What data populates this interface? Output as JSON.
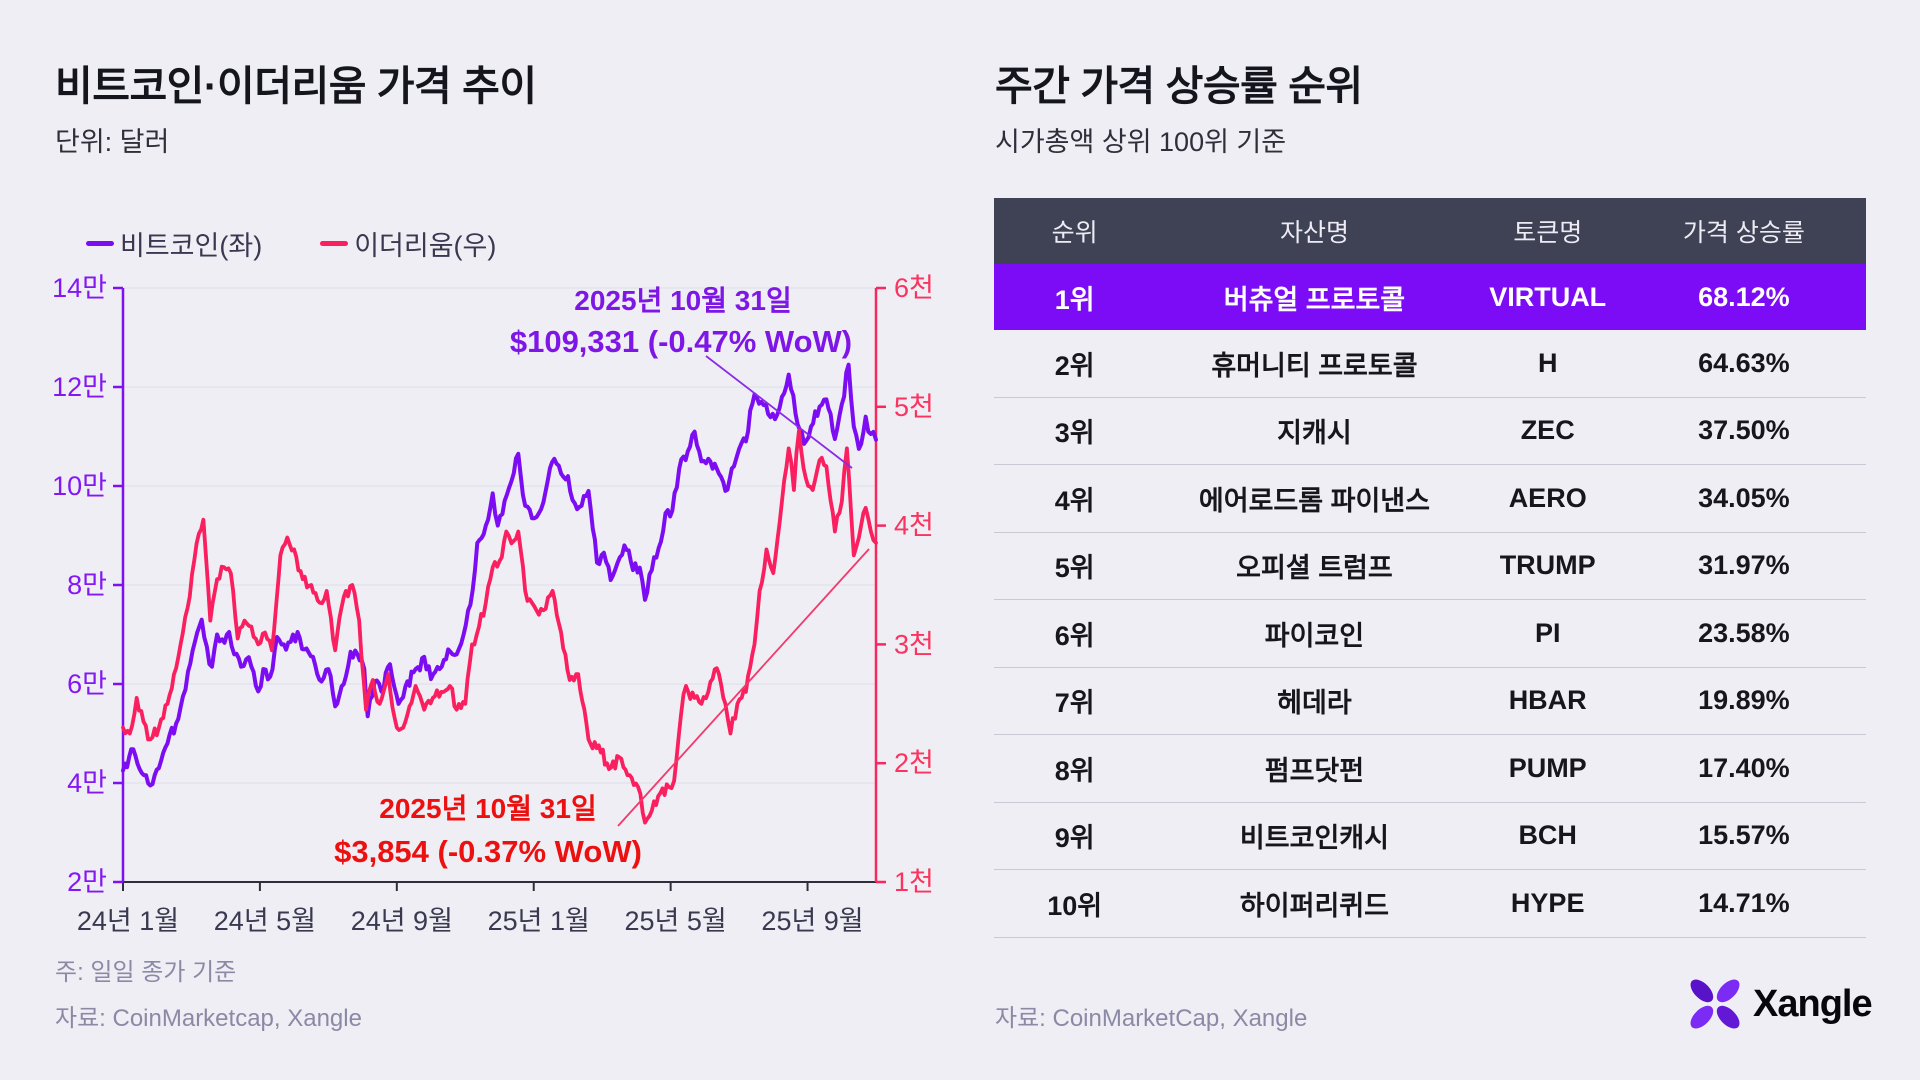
{
  "left_panel": {
    "title": "비트코인·이더리움 가격 추이",
    "subtitle": "단위: 달러",
    "legend": [
      {
        "label": "비트코인(좌)",
        "color": "#7C0DF2"
      },
      {
        "label": "이더리움(우)",
        "color": "#FA1F5F"
      }
    ],
    "annotations": {
      "btc": {
        "date": "2025년 10월 31일",
        "value": "$109,331 (-0.47% WoW)"
      },
      "eth": {
        "date": "2025년 10월 31일",
        "value": "$3,854 (-0.37% WoW)"
      }
    },
    "note": "주: 일일 종가 기준",
    "source": "자료: CoinMarketcap, Xangle"
  },
  "chart_data": {
    "type": "line",
    "title": "비트코인·이더리움 가격 추이",
    "unit": "달러",
    "x_axis": {
      "range_months_from_2024_01": [
        0,
        22
      ],
      "tick_months": [
        0,
        4,
        8,
        12,
        16,
        20
      ],
      "tick_labels": [
        "24년 1월",
        "24년 5월",
        "24년 9월",
        "25년 1월",
        "25년 5월",
        "25년 9월"
      ]
    },
    "y_left_axis": {
      "series": "비트코인(좌)",
      "unit": "만 달러",
      "range": [
        2,
        14
      ],
      "tick_values": [
        2,
        4,
        6,
        8,
        10,
        12,
        14
      ],
      "tick_labels": [
        "2만",
        "4만",
        "6만",
        "8만",
        "10만",
        "12만",
        "14만"
      ],
      "color": "#8318F2"
    },
    "y_right_axis": {
      "series": "이더리움(우)",
      "unit": "천 달러",
      "range": [
        1,
        6
      ],
      "tick_values": [
        1,
        2,
        3,
        4,
        5,
        6
      ],
      "tick_labels": [
        "1천",
        "2천",
        "3천",
        "4천",
        "5천",
        "6천"
      ],
      "color": "#FB335F"
    },
    "grid": true,
    "legend_position": "top-left",
    "series": [
      {
        "name": "비트코인(좌)",
        "axis": "left",
        "color": "#7C0DF2",
        "unit": "만 달러",
        "points": [
          [
            0,
            4.25
          ],
          [
            0.3,
            4.68
          ],
          [
            0.55,
            4.2
          ],
          [
            0.8,
            3.95
          ],
          [
            1.05,
            4.3
          ],
          [
            1.3,
            4.8
          ],
          [
            1.55,
            5.2
          ],
          [
            1.75,
            5.75
          ],
          [
            1.9,
            6.25
          ],
          [
            2.1,
            6.85
          ],
          [
            2.3,
            7.3
          ],
          [
            2.45,
            6.75
          ],
          [
            2.6,
            6.35
          ],
          [
            2.75,
            7.0
          ],
          [
            2.9,
            6.9
          ],
          [
            3.1,
            7.05
          ],
          [
            3.25,
            6.6
          ],
          [
            3.45,
            6.35
          ],
          [
            3.6,
            6.5
          ],
          [
            3.75,
            6.35
          ],
          [
            3.95,
            5.85
          ],
          [
            4.1,
            6.3
          ],
          [
            4.3,
            6.15
          ],
          [
            4.5,
            6.95
          ],
          [
            4.7,
            6.8
          ],
          [
            4.9,
            6.85
          ],
          [
            5.1,
            7.05
          ],
          [
            5.3,
            6.7
          ],
          [
            5.55,
            6.55
          ],
          [
            5.8,
            6.05
          ],
          [
            6.0,
            6.3
          ],
          [
            6.2,
            5.55
          ],
          [
            6.45,
            6.0
          ],
          [
            6.65,
            6.65
          ],
          [
            6.85,
            6.6
          ],
          [
            7.05,
            6.3
          ],
          [
            7.15,
            5.35
          ],
          [
            7.35,
            6.05
          ],
          [
            7.55,
            5.85
          ],
          [
            7.8,
            6.4
          ],
          [
            8.05,
            5.6
          ],
          [
            8.25,
            5.95
          ],
          [
            8.55,
            6.3
          ],
          [
            8.8,
            6.55
          ],
          [
            9.0,
            6.1
          ],
          [
            9.25,
            6.3
          ],
          [
            9.5,
            6.7
          ],
          [
            9.75,
            6.6
          ],
          [
            9.95,
            7.0
          ],
          [
            10.15,
            7.6
          ],
          [
            10.35,
            8.85
          ],
          [
            10.6,
            9.2
          ],
          [
            10.8,
            9.85
          ],
          [
            10.95,
            9.2
          ],
          [
            11.15,
            9.7
          ],
          [
            11.35,
            10.1
          ],
          [
            11.55,
            10.65
          ],
          [
            11.75,
            9.6
          ],
          [
            11.95,
            9.35
          ],
          [
            12.15,
            9.45
          ],
          [
            12.35,
            9.9
          ],
          [
            12.6,
            10.55
          ],
          [
            12.8,
            10.25
          ],
          [
            13.0,
            10.2
          ],
          [
            13.2,
            9.65
          ],
          [
            13.4,
            9.6
          ],
          [
            13.6,
            9.9
          ],
          [
            13.85,
            8.45
          ],
          [
            14.05,
            8.65
          ],
          [
            14.25,
            8.1
          ],
          [
            14.45,
            8.45
          ],
          [
            14.65,
            8.8
          ],
          [
            14.9,
            8.3
          ],
          [
            15.1,
            8.35
          ],
          [
            15.25,
            7.7
          ],
          [
            15.45,
            8.3
          ],
          [
            15.65,
            8.75
          ],
          [
            15.85,
            9.45
          ],
          [
            16.05,
            9.5
          ],
          [
            16.25,
            10.35
          ],
          [
            16.5,
            10.7
          ],
          [
            16.7,
            11.1
          ],
          [
            16.9,
            10.5
          ],
          [
            17.1,
            10.55
          ],
          [
            17.35,
            10.35
          ],
          [
            17.6,
            9.9
          ],
          [
            17.85,
            10.4
          ],
          [
            18.0,
            10.75
          ],
          [
            18.2,
            10.9
          ],
          [
            18.45,
            11.85
          ],
          [
            18.65,
            11.7
          ],
          [
            18.85,
            11.45
          ],
          [
            19.05,
            11.35
          ],
          [
            19.25,
            11.8
          ],
          [
            19.45,
            12.25
          ],
          [
            19.65,
            11.45
          ],
          [
            19.9,
            10.85
          ],
          [
            20.1,
            11.2
          ],
          [
            20.35,
            11.6
          ],
          [
            20.55,
            11.75
          ],
          [
            20.8,
            10.95
          ],
          [
            21.0,
            11.65
          ],
          [
            21.2,
            12.45
          ],
          [
            21.35,
            11.2
          ],
          [
            21.5,
            10.75
          ],
          [
            21.7,
            11.4
          ],
          [
            21.85,
            11.05
          ],
          [
            22,
            10.9331
          ]
        ],
        "last_point": {
          "date": "2025-10-31",
          "value_usd": 109331,
          "wow_change": "-0.47%"
        }
      },
      {
        "name": "이더리움(우)",
        "axis": "right",
        "color": "#FA1F5F",
        "unit": "천 달러",
        "points": [
          [
            0,
            2.3
          ],
          [
            0.2,
            2.25
          ],
          [
            0.4,
            2.55
          ],
          [
            0.6,
            2.35
          ],
          [
            0.8,
            2.2
          ],
          [
            1.05,
            2.3
          ],
          [
            1.3,
            2.5
          ],
          [
            1.55,
            2.8
          ],
          [
            1.75,
            3.1
          ],
          [
            1.95,
            3.4
          ],
          [
            2.15,
            3.85
          ],
          [
            2.35,
            4.05
          ],
          [
            2.55,
            3.2
          ],
          [
            2.75,
            3.55
          ],
          [
            2.95,
            3.65
          ],
          [
            3.15,
            3.6
          ],
          [
            3.35,
            3.05
          ],
          [
            3.55,
            3.2
          ],
          [
            3.75,
            3.15
          ],
          [
            3.95,
            3.0
          ],
          [
            4.15,
            3.1
          ],
          [
            4.35,
            2.95
          ],
          [
            4.6,
            3.75
          ],
          [
            4.8,
            3.9
          ],
          [
            5.0,
            3.8
          ],
          [
            5.25,
            3.55
          ],
          [
            5.5,
            3.5
          ],
          [
            5.75,
            3.35
          ],
          [
            5.95,
            3.45
          ],
          [
            6.2,
            2.95
          ],
          [
            6.45,
            3.4
          ],
          [
            6.7,
            3.5
          ],
          [
            6.9,
            3.2
          ],
          [
            7.1,
            2.45
          ],
          [
            7.3,
            2.7
          ],
          [
            7.5,
            2.5
          ],
          [
            7.75,
            2.75
          ],
          [
            8.0,
            2.3
          ],
          [
            8.25,
            2.35
          ],
          [
            8.55,
            2.65
          ],
          [
            8.8,
            2.45
          ],
          [
            9.05,
            2.55
          ],
          [
            9.3,
            2.6
          ],
          [
            9.55,
            2.65
          ],
          [
            9.75,
            2.45
          ],
          [
            10.0,
            2.5
          ],
          [
            10.2,
            3.0
          ],
          [
            10.4,
            3.15
          ],
          [
            10.6,
            3.35
          ],
          [
            10.8,
            3.65
          ],
          [
            11.0,
            3.7
          ],
          [
            11.2,
            3.95
          ],
          [
            11.35,
            3.85
          ],
          [
            11.55,
            3.95
          ],
          [
            11.75,
            3.45
          ],
          [
            11.95,
            3.35
          ],
          [
            12.15,
            3.25
          ],
          [
            12.35,
            3.3
          ],
          [
            12.55,
            3.45
          ],
          [
            12.8,
            3.1
          ],
          [
            13.05,
            2.7
          ],
          [
            13.3,
            2.75
          ],
          [
            13.6,
            2.2
          ],
          [
            13.9,
            2.15
          ],
          [
            14.2,
            1.95
          ],
          [
            14.5,
            2.05
          ],
          [
            14.8,
            1.9
          ],
          [
            15.05,
            1.8
          ],
          [
            15.25,
            1.5
          ],
          [
            15.45,
            1.6
          ],
          [
            15.7,
            1.75
          ],
          [
            15.95,
            1.8
          ],
          [
            16.1,
            1.85
          ],
          [
            16.3,
            2.4
          ],
          [
            16.45,
            2.65
          ],
          [
            16.7,
            2.55
          ],
          [
            16.9,
            2.5
          ],
          [
            17.1,
            2.6
          ],
          [
            17.35,
            2.8
          ],
          [
            17.6,
            2.5
          ],
          [
            17.75,
            2.25
          ],
          [
            17.95,
            2.5
          ],
          [
            18.2,
            2.6
          ],
          [
            18.45,
            3.0
          ],
          [
            18.6,
            3.45
          ],
          [
            18.8,
            3.8
          ],
          [
            19.0,
            3.6
          ],
          [
            19.25,
            4.2
          ],
          [
            19.45,
            4.65
          ],
          [
            19.6,
            4.3
          ],
          [
            19.75,
            4.8
          ],
          [
            19.95,
            4.4
          ],
          [
            20.15,
            4.3
          ],
          [
            20.35,
            4.55
          ],
          [
            20.55,
            4.5
          ],
          [
            20.8,
            3.95
          ],
          [
            21.0,
            4.2
          ],
          [
            21.15,
            4.65
          ],
          [
            21.35,
            3.75
          ],
          [
            21.5,
            3.9
          ],
          [
            21.7,
            4.15
          ],
          [
            21.85,
            3.95
          ],
          [
            22,
            3.854
          ]
        ],
        "last_point": {
          "date": "2025-10-31",
          "value_usd": 3854,
          "wow_change": "-0.37%"
        }
      }
    ],
    "annotations": [
      {
        "series": "비트코인(좌)",
        "date": "2025년 10월 31일",
        "label": "$109,331 (-0.47% WoW)"
      },
      {
        "series": "이더리움(우)",
        "date": "2025년 10월 31일",
        "label": "$3,854 (-0.37% WoW)"
      }
    ]
  },
  "right_panel": {
    "title": "주간 가격 상승률 순위",
    "subtitle": "시가총액 상위 100위 기준",
    "table": {
      "headers": [
        "순위",
        "자산명",
        "토큰명",
        "가격 상승률"
      ],
      "header_bg": "#3F4254",
      "highlight_bg": "#7C0CF6",
      "highlight_row_index": 0,
      "rows": [
        [
          "1위",
          "버츄얼 프로토콜",
          "VIRTUAL",
          "68.12%"
        ],
        [
          "2위",
          "휴머니티 프로토콜",
          "H",
          "64.63%"
        ],
        [
          "3위",
          "지캐시",
          "ZEC",
          "37.50%"
        ],
        [
          "4위",
          "에어로드롬 파이낸스",
          "AERO",
          "34.05%"
        ],
        [
          "5위",
          "오피셜 트럼프",
          "TRUMP",
          "31.97%"
        ],
        [
          "6위",
          "파이코인",
          "PI",
          "23.58%"
        ],
        [
          "7위",
          "헤데라",
          "HBAR",
          "19.89%"
        ],
        [
          "8위",
          "펌프닷펀",
          "PUMP",
          "17.40%"
        ],
        [
          "9위",
          "비트코인캐시",
          "BCH",
          "15.57%"
        ],
        [
          "10위",
          "하이퍼리퀴드",
          "HYPE",
          "14.71%"
        ]
      ]
    },
    "source": "자료: CoinMarketCap, Xangle",
    "logo_text": "Xangle"
  }
}
